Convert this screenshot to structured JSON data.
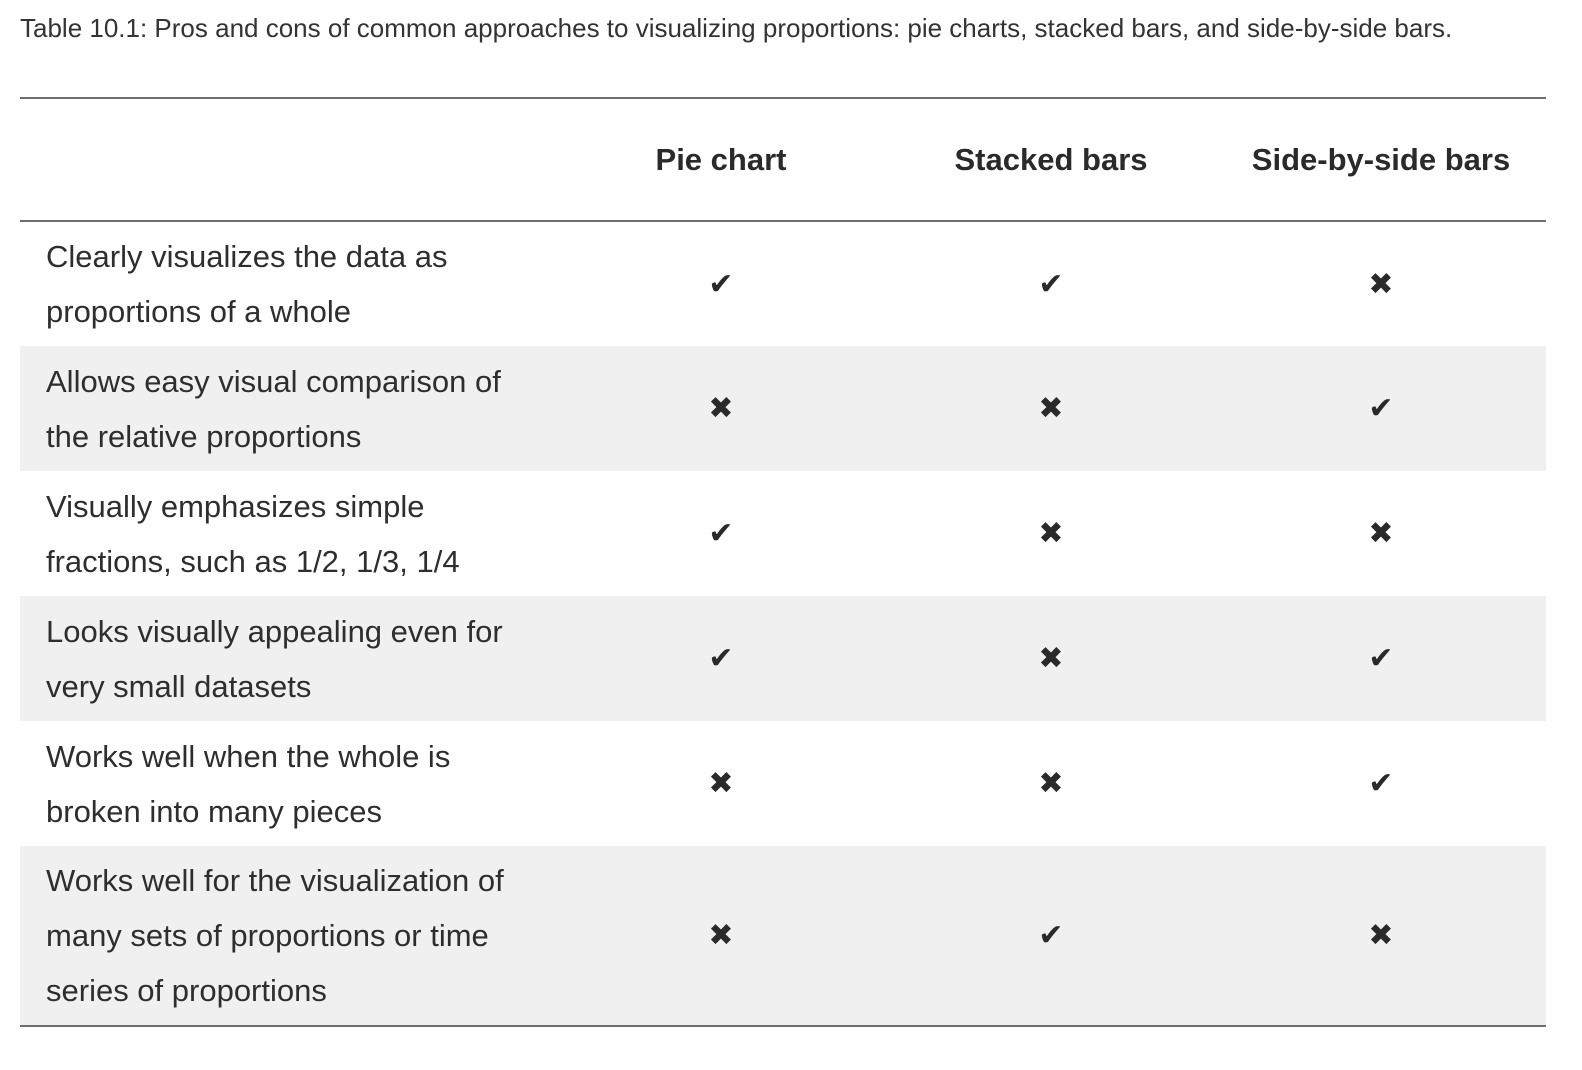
{
  "caption": "Table 10.1: Pros and cons of common approaches to visualizing proportions: pie charts, stacked bars, and side-by-side bars.",
  "table": {
    "headers": [
      "",
      "Pie chart",
      "Stacked bars",
      "Side-by-side bars"
    ],
    "rows": [
      {
        "label": "Clearly visualizes the data as proportions of a whole",
        "pie_chart": "✔",
        "stacked_bars": "✔",
        "side_by_side_bars": "✖"
      },
      {
        "label": "Allows easy visual comparison of the relative proportions",
        "pie_chart": "✖",
        "stacked_bars": "✖",
        "side_by_side_bars": "✔"
      },
      {
        "label": "Visually emphasizes simple fractions, such as 1/2, 1/3, 1/4",
        "pie_chart": "✔",
        "stacked_bars": "✖",
        "side_by_side_bars": "✖"
      },
      {
        "label": "Looks visually appealing even for very small datasets",
        "pie_chart": "✔",
        "stacked_bars": "✖",
        "side_by_side_bars": "✔"
      },
      {
        "label": "Works well when the whole is broken into many pieces",
        "pie_chart": "✖",
        "stacked_bars": "✖",
        "side_by_side_bars": "✔"
      },
      {
        "label": "Works well for the visualization of many sets of proportions or time series of proportions",
        "pie_chart": "✖",
        "stacked_bars": "✔",
        "side_by_side_bars": "✖"
      }
    ]
  },
  "colors": {
    "text": "#2e2e2e",
    "rule": "#6e6e6e",
    "row_shade": "#f0f0f0",
    "background": "#ffffff"
  }
}
